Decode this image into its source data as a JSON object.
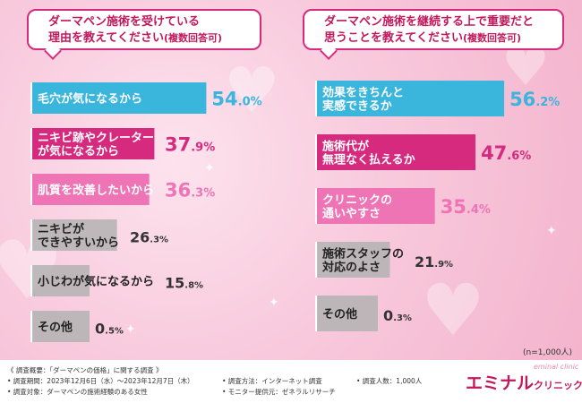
{
  "header": {
    "left_title_line1": "ダーマペン施術を受けている",
    "left_title_line2": "理由を教えてください",
    "left_title_suffix": "(複数回答可)",
    "right_title_line1": "ダーマペン施術を継続する上で重要だと",
    "right_title_line2": "思うことを教えてください",
    "right_title_suffix": "(複数回答可)"
  },
  "sample_note": "(n=1,000人)",
  "colors": {
    "cyan": "#3ab5dc",
    "magenta": "#d62a7e",
    "pink": "#ee74b5",
    "gray": "#b3b3b3",
    "text": "#333333"
  },
  "chart_data": [
    {
      "type": "bar",
      "orientation": "horizontal",
      "title": "ダーマペン施術を受けている理由を教えてください(複数回答可)",
      "unit": "%",
      "categories": [
        {
          "lines": [
            "毛穴が気になるから"
          ],
          "value": 54.0,
          "int": "54",
          "dec": ".0",
          "color": "#3ab5dc"
        },
        {
          "lines": [
            "ニキビ跡やクレーター",
            "が気になるから"
          ],
          "value": 37.9,
          "int": "37",
          "dec": ".9",
          "color": "#d62a7e"
        },
        {
          "lines": [
            "肌質を改善したいから"
          ],
          "value": 36.3,
          "int": "36",
          "dec": ".3",
          "color": "#ee74b5"
        },
        {
          "lines": [
            "ニキビが",
            "できやすいから"
          ],
          "value": 26.3,
          "int": "26",
          "dec": ".3",
          "color": "#b3b3b3"
        },
        {
          "lines": [
            "小じわが気になるから"
          ],
          "value": 15.8,
          "int": "15",
          "dec": ".8",
          "color": "#b3b3b3"
        },
        {
          "lines": [
            "その他"
          ],
          "value": 0.5,
          "int": "0",
          "dec": ".5",
          "color": "#b3b3b3"
        }
      ]
    },
    {
      "type": "bar",
      "orientation": "horizontal",
      "title": "ダーマペン施術を継続する上で重要だと思うことを教えてください(複数回答可)",
      "unit": "%",
      "categories": [
        {
          "lines": [
            "効果をきちんと",
            "実感できるか"
          ],
          "value": 56.2,
          "int": "56",
          "dec": ".2",
          "color": "#3ab5dc"
        },
        {
          "lines": [
            "施術代が",
            "無理なく払えるか"
          ],
          "value": 47.6,
          "int": "47",
          "dec": ".6",
          "color": "#d62a7e"
        },
        {
          "lines": [
            "クリニックの",
            "通いやすさ"
          ],
          "value": 35.4,
          "int": "35",
          "dec": ".4",
          "color": "#ee74b5"
        },
        {
          "lines": [
            "施術スタッフの",
            "対応のよさ"
          ],
          "value": 21.9,
          "int": "21",
          "dec": ".9",
          "color": "#b3b3b3"
        },
        {
          "lines": [
            "その他"
          ],
          "value": 0.3,
          "int": "0",
          "dec": ".3",
          "color": "#b3b3b3"
        }
      ]
    }
  ],
  "footer": {
    "overview": "《 調査概要：「ダーマペンの価格」に関する調査 》",
    "period": "• 調査期間：2023年12月6日（水）～2023年12月7日（木）",
    "target": "• 調査対象：ダーマペンの施術経験のある女性",
    "method": "• 調査方法：インターネット調査",
    "monitor": "• モニター提供元：ゼネラルリサーチ",
    "count": "• 調査人数：1,000人",
    "logo_main": "エミナル",
    "logo_sub": "クリニック",
    "logo_script": "eminal clinic"
  }
}
